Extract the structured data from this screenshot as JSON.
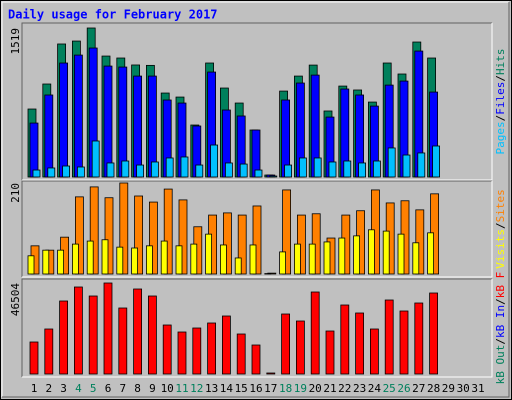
{
  "chart_data": [
    {
      "type": "bar",
      "title": "Daily usage for February 2017",
      "ylim": [
        0,
        1519
      ],
      "yticks": [
        1519
      ],
      "legend_separator": "/",
      "series": [
        {
          "name": "Hits",
          "color": "#00805c",
          "values": [
            693,
            948,
            1356,
            1386,
            1519,
            1233,
            1213,
            1142,
            1138,
            856,
            815,
            530,
            1162,
            907,
            754,
            479,
            20,
            876,
            1029,
            1141,
            673,
            927,
            887,
            764,
            1162,
            1050,
            1376,
            1213,
            null,
            null,
            null
          ]
        },
        {
          "name": "Files",
          "color": "#0000ff",
          "values": [
            550,
            836,
            1162,
            1243,
            1315,
            1131,
            1121,
            1029,
            1029,
            785,
            754,
            520,
            1070,
            683,
            622,
            479,
            20,
            785,
            958,
            1039,
            611,
            897,
            836,
            723,
            937,
            978,
            1284,
            866,
            null,
            null,
            null
          ]
        },
        {
          "name": "Pages",
          "color": "#00c0ff",
          "values": [
            71,
            92,
            112,
            102,
            367,
            143,
            163,
            122,
            153,
            194,
            204,
            122,
            326,
            143,
            132,
            71,
            10,
            122,
            194,
            194,
            153,
            163,
            143,
            163,
            296,
            224,
            245,
            316,
            null,
            null,
            null
          ]
        }
      ]
    },
    {
      "type": "bar",
      "ylim": [
        0,
        210
      ],
      "yticks": [
        210
      ],
      "legend_separator": "/",
      "series": [
        {
          "name": "Sites",
          "color": "#ff8000",
          "values": [
            65,
            55,
            85,
            178,
            201,
            176,
            210,
            180,
            166,
            196,
            171,
            109,
            136,
            141,
            136,
            157,
            2,
            194,
            136,
            139,
            83,
            136,
            146,
            194,
            164,
            169,
            148,
            185,
            null,
            null,
            null
          ]
        },
        {
          "name": "Visits",
          "color": "#ffff00",
          "values": [
            42,
            55,
            55,
            69,
            76,
            79,
            62,
            60,
            65,
            76,
            65,
            69,
            92,
            67,
            37,
            67,
            1,
            51,
            69,
            69,
            74,
            83,
            88,
            102,
            99,
            92,
            72,
            95,
            null,
            null,
            null
          ]
        }
      ]
    },
    {
      "type": "bar",
      "ylim": [
        0,
        46504
      ],
      "yticks": [
        46504
      ],
      "legend_separator": "/",
      "categories": [
        1,
        2,
        3,
        4,
        5,
        6,
        7,
        8,
        9,
        10,
        11,
        12,
        13,
        14,
        15,
        16,
        17,
        18,
        19,
        20,
        21,
        22,
        23,
        24,
        25,
        26,
        27,
        28,
        29,
        30,
        31
      ],
      "category_colors": [
        "#000000",
        "#000000",
        "#000000",
        "#00805c",
        "#00805c",
        "#000000",
        "#000000",
        "#000000",
        "#000000",
        "#000000",
        "#00805c",
        "#00805c",
        "#000000",
        "#000000",
        "#000000",
        "#000000",
        "#000000",
        "#00805c",
        "#00805c",
        "#000000",
        "#000000",
        "#000000",
        "#000000",
        "#000000",
        "#00805c",
        "#00805c",
        "#000000",
        "#000000",
        "#000000",
        "#000000",
        "#000000"
      ],
      "series": [
        {
          "name": "kB F",
          "color": "#ff0000",
          "values": [
            16352,
            22995,
            37303,
            44457,
            39858,
            46504,
            33726,
            43435,
            39858,
            25039,
            21462,
            23506,
            26061,
            29638,
            20440,
            14819,
            511,
            30660,
            27083,
            41902,
            21973,
            35259,
            31171,
            22995,
            37814,
            32193,
            36281,
            41391,
            null,
            null,
            null
          ]
        },
        {
          "name": "kB In",
          "color": "#0000ff"
        },
        {
          "name": "kB Out",
          "color": "#00805c"
        }
      ]
    }
  ]
}
